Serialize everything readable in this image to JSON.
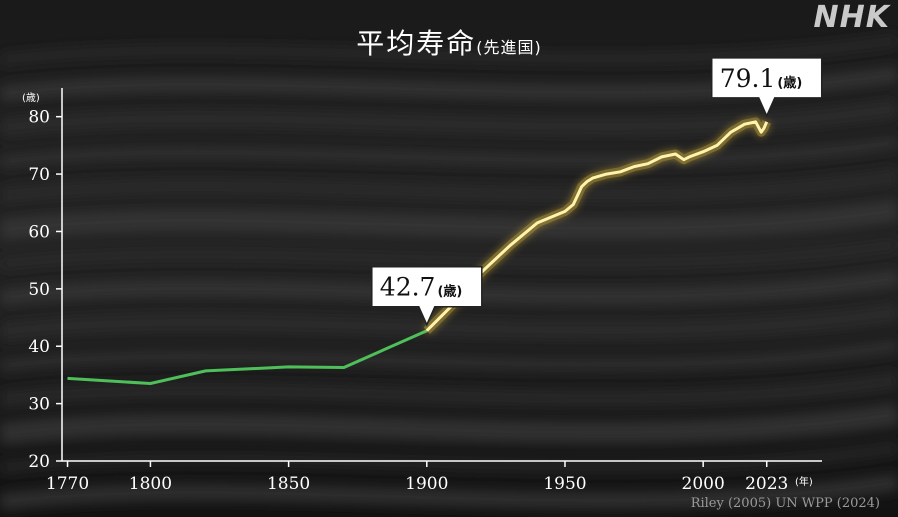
{
  "title": "平均寿命",
  "subtitle": "(先進国)",
  "logo": "NHK",
  "source": "Riley (2005)  UN WPP (2024)",
  "colors": {
    "early_line": "#4fbf5a",
    "late_line": "#fff3b0",
    "glow": "#e8c23a",
    "axis": "#ffffff"
  },
  "chart_data": {
    "type": "line",
    "title": "平均寿命(先進国)",
    "xlabel": "",
    "ylabel": "",
    "x_unit": "(年)",
    "y_unit": "(歳)",
    "xlim": [
      1768,
      2043
    ],
    "ylim": [
      20,
      85
    ],
    "x_ticks": [
      1770,
      1800,
      1850,
      1900,
      1950,
      2000,
      2023
    ],
    "y_ticks": [
      20,
      30,
      40,
      50,
      60,
      70,
      80
    ],
    "grid": false,
    "split_year": 1900,
    "x": [
      1770,
      1800,
      1820,
      1850,
      1870,
      1900,
      1910,
      1920,
      1930,
      1940,
      1950,
      1953,
      1956,
      1958,
      1960,
      1965,
      1970,
      1975,
      1980,
      1985,
      1990,
      1993,
      1995,
      2000,
      2005,
      2010,
      2015,
      2019,
      2021,
      2022,
      2023
    ],
    "y": [
      34.4,
      33.5,
      35.7,
      36.4,
      36.3,
      42.7,
      47.5,
      53.0,
      57.5,
      61.5,
      63.5,
      64.7,
      67.8,
      68.7,
      69.3,
      70.0,
      70.4,
      71.3,
      71.8,
      73.0,
      73.5,
      72.5,
      73.0,
      73.9,
      75.0,
      77.3,
      78.7,
      79.1,
      77.3,
      78.0,
      79.1
    ],
    "annotations": [
      {
        "x": 1900,
        "y": 42.7,
        "value": "42.7",
        "unit": "(歳)"
      },
      {
        "x": 2023,
        "y": 79.1,
        "value": "79.1",
        "unit": "(歳)"
      }
    ]
  }
}
